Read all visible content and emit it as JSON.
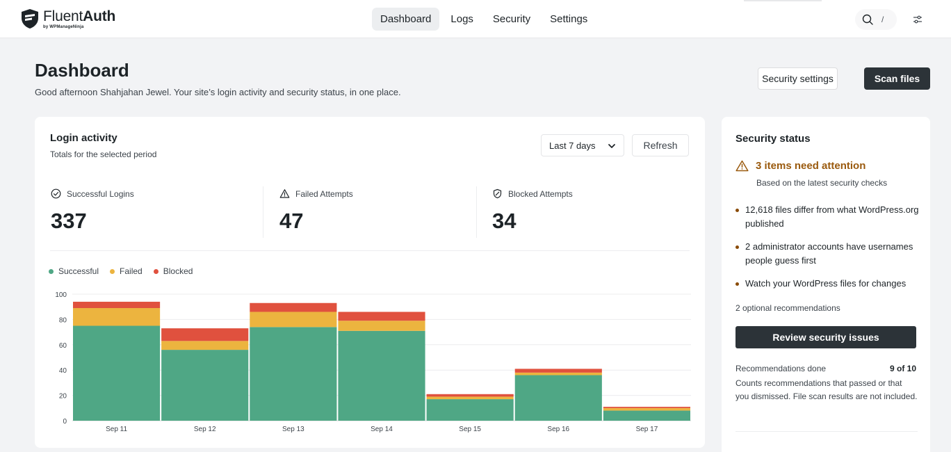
{
  "brand": {
    "name_light": "Fluent",
    "name_bold": "Auth",
    "by": "by WPManageNinja"
  },
  "nav": {
    "items": [
      {
        "label": "Dashboard",
        "active": true
      },
      {
        "label": "Logs",
        "active": false
      },
      {
        "label": "Security",
        "active": false
      },
      {
        "label": "Settings",
        "active": false
      }
    ],
    "search_shortcut": "/"
  },
  "header": {
    "title": "Dashboard",
    "subtitle": "Good afternoon Shahjahan Jewel. Your site’s login activity and security status, in one place.",
    "security_settings_label": "Security settings",
    "scan_files_label": "Scan files"
  },
  "login_activity": {
    "title": "Login activity",
    "subtitle": "Totals for the selected period",
    "period": "Last 7 days",
    "refresh_label": "Refresh",
    "stats": [
      {
        "label": "Successful Logins",
        "value": "337",
        "icon": "check-circle-icon"
      },
      {
        "label": "Failed Attempts",
        "value": "47",
        "icon": "warning-triangle-icon"
      },
      {
        "label": "Blocked Attempts",
        "value": "34",
        "icon": "shield-icon"
      }
    ]
  },
  "chart_data": {
    "type": "bar",
    "stacked": true,
    "categories": [
      "Sep 11",
      "Sep 12",
      "Sep 13",
      "Sep 14",
      "Sep 15",
      "Sep 16",
      "Sep 17"
    ],
    "series": [
      {
        "name": "Successful",
        "color": "#4fa785",
        "values": [
          75,
          56,
          74,
          71,
          17,
          36,
          8
        ]
      },
      {
        "name": "Failed",
        "color": "#ecb43f",
        "values": [
          14,
          7,
          12,
          8,
          2,
          2,
          2
        ]
      },
      {
        "name": "Blocked",
        "color": "#e0513e",
        "values": [
          5,
          10,
          7,
          7,
          2,
          3,
          1
        ]
      }
    ],
    "y_ticks": [
      "0",
      "20",
      "40",
      "60",
      "80",
      "100"
    ],
    "ylim": [
      0,
      100
    ],
    "grid": true,
    "legend": "top-left"
  },
  "security_status": {
    "title": "Security status",
    "attention_title": "3 items need attention",
    "attention_sub": "Based on the latest security checks",
    "issues": [
      "12,618 files differ from what WordPress.org published",
      "2 administrator accounts have usernames people guess first",
      "Watch your WordPress files for changes"
    ],
    "optional": "2 optional recommendations",
    "review_label": "Review security issues",
    "rec_label": "Recommendations done",
    "rec_value": "9 of 10",
    "rec_note": "Counts recommendations that passed or that you dismissed. File scan results are not included."
  }
}
